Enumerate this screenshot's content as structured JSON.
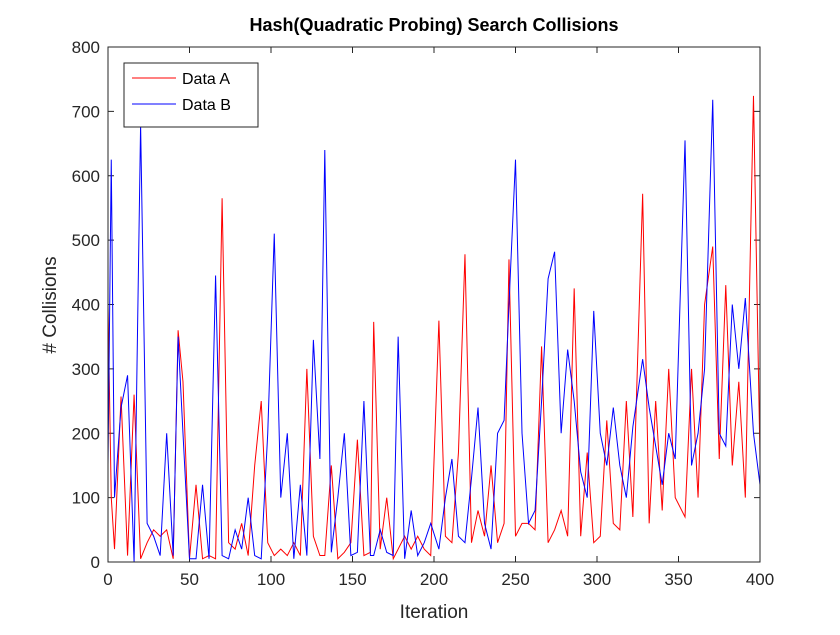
{
  "chart_data": {
    "type": "line",
    "title": "Hash(Quadratic Probing) Search Collisions",
    "x_label": "Iteration",
    "y_label": "# Collisions",
    "legend": "top-left",
    "xlim": [
      0,
      400
    ],
    "xticks": [
      0,
      50,
      100,
      150,
      200,
      250,
      300,
      350,
      400
    ],
    "ylim": [
      0,
      800
    ],
    "yticks": [
      0,
      100,
      200,
      300,
      400,
      500,
      600,
      700,
      800
    ],
    "x": [
      0,
      2,
      4,
      8,
      12,
      16,
      20,
      24,
      28,
      32,
      36,
      40,
      43,
      46,
      50,
      54,
      58,
      62,
      66,
      70,
      74,
      78,
      82,
      86,
      90,
      94,
      98,
      102,
      106,
      110,
      114,
      118,
      122,
      126,
      130,
      133,
      137,
      141,
      145,
      149,
      153,
      157,
      161,
      163,
      167,
      171,
      175,
      178,
      182,
      186,
      190,
      194,
      198,
      203,
      207,
      211,
      215,
      219,
      223,
      227,
      231,
      235,
      239,
      243,
      246,
      250,
      254,
      258,
      262,
      266,
      270,
      274,
      278,
      282,
      286,
      290,
      294,
      298,
      302,
      306,
      310,
      314,
      318,
      322,
      328,
      332,
      336,
      340,
      344,
      348,
      354,
      358,
      362,
      366,
      371,
      375,
      379,
      383,
      387,
      391,
      396,
      400
    ],
    "series": [
      {
        "name": "Data A",
        "color": "#ff0000",
        "values": [
          400,
          100,
          20,
          257,
          10,
          260,
          5,
          30,
          50,
          40,
          50,
          5,
          360,
          280,
          5,
          120,
          5,
          10,
          5,
          565,
          30,
          20,
          60,
          10,
          150,
          250,
          30,
          10,
          20,
          10,
          30,
          10,
          300,
          40,
          10,
          10,
          150,
          5,
          15,
          30,
          190,
          10,
          15,
          373,
          20,
          100,
          5,
          20,
          40,
          20,
          40,
          20,
          10,
          375,
          40,
          30,
          170,
          478,
          30,
          80,
          40,
          150,
          30,
          60,
          470,
          40,
          60,
          60,
          50,
          335,
          30,
          50,
          80,
          40,
          425,
          40,
          170,
          30,
          40,
          220,
          60,
          50,
          250,
          70,
          572,
          60,
          250,
          80,
          300,
          100,
          70,
          300,
          100,
          400,
          490,
          160,
          430,
          150,
          280,
          100,
          724,
          160
        ]
      },
      {
        "name": "Data B",
        "color": "#0000ff",
        "values": [
          150,
          625,
          100,
          240,
          290,
          0,
          680,
          60,
          40,
          10,
          200,
          10,
          350,
          200,
          5,
          5,
          120,
          5,
          445,
          10,
          5,
          50,
          20,
          100,
          10,
          5,
          200,
          510,
          100,
          200,
          5,
          120,
          10,
          345,
          160,
          640,
          15,
          100,
          200,
          10,
          15,
          250,
          10,
          10,
          50,
          15,
          10,
          350,
          5,
          80,
          10,
          30,
          60,
          20,
          100,
          160,
          40,
          30,
          130,
          240,
          60,
          20,
          200,
          220,
          400,
          625,
          200,
          60,
          80,
          250,
          440,
          482,
          200,
          330,
          250,
          140,
          100,
          390,
          200,
          150,
          240,
          150,
          100,
          210,
          315,
          240,
          180,
          120,
          200,
          160,
          655,
          150,
          200,
          300,
          718,
          200,
          180,
          400,
          300,
          410,
          200,
          120
        ]
      }
    ]
  }
}
